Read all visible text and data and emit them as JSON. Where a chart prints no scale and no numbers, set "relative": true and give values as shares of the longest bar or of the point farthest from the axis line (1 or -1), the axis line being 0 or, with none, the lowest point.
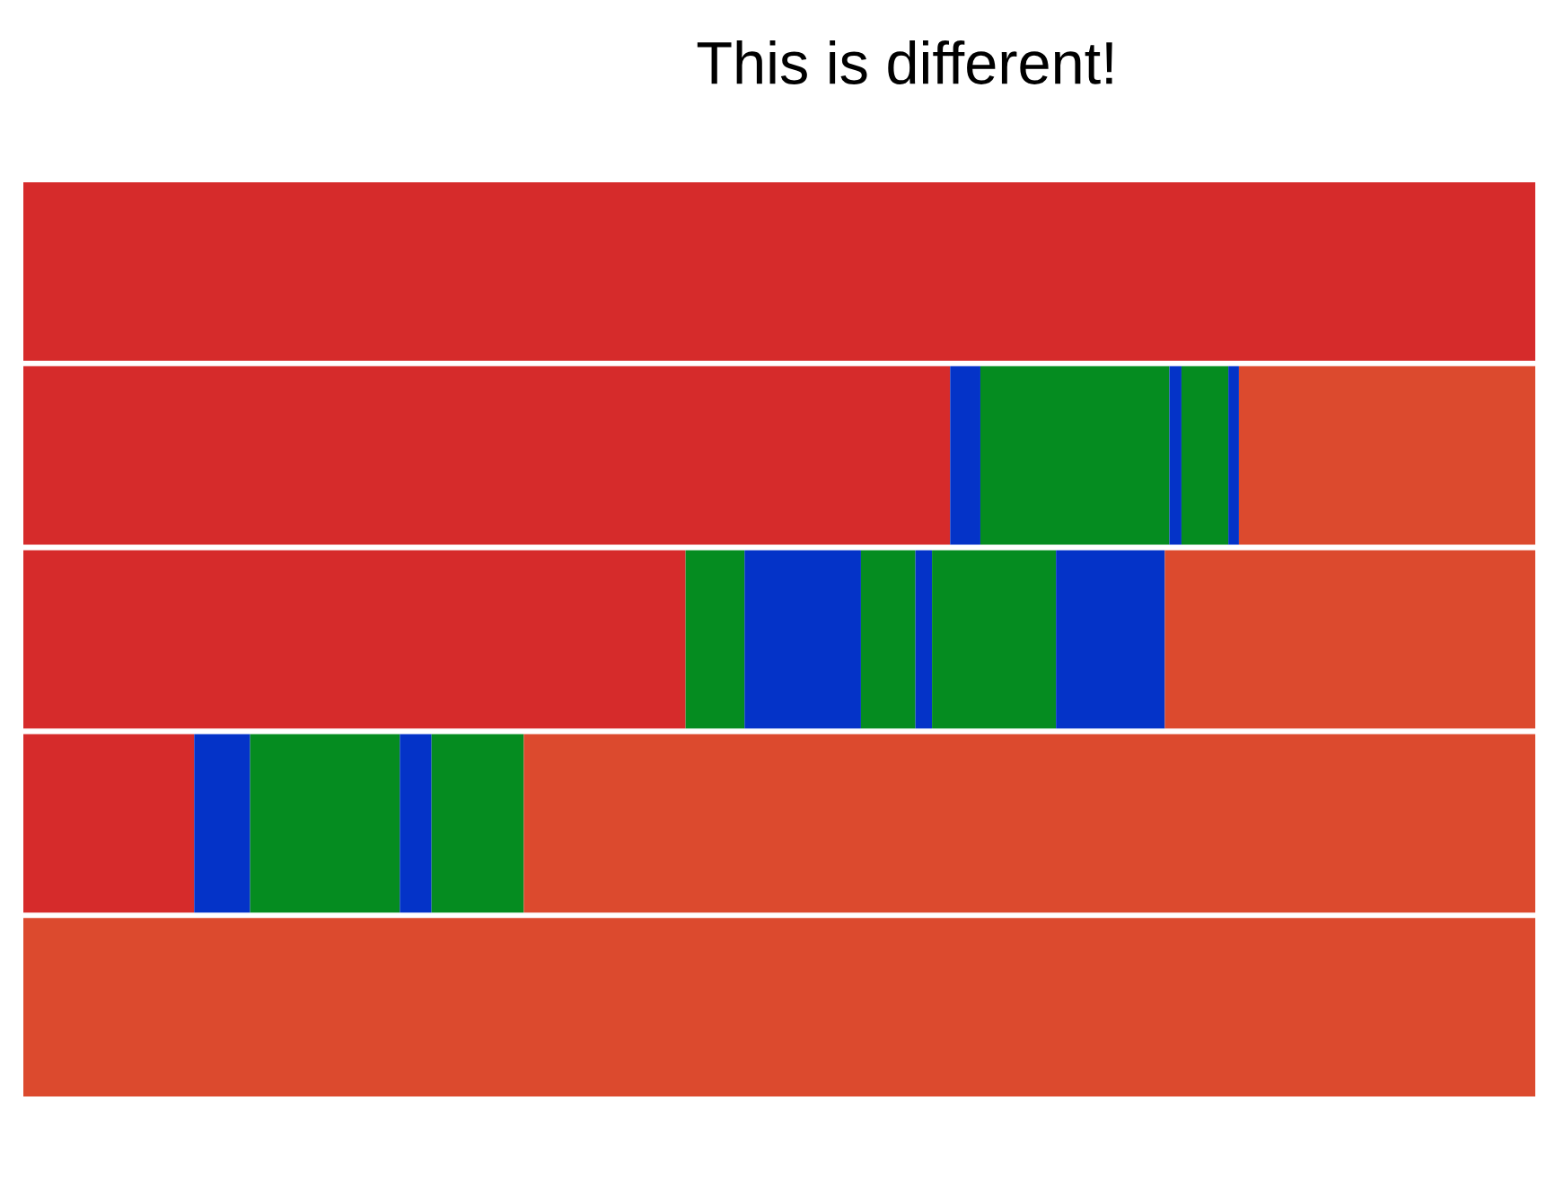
{
  "chart_data": {
    "type": "bar",
    "title": "This is different!",
    "orientation": "horizontal",
    "stacked": true,
    "relative": true,
    "categories": [
      null,
      null,
      null,
      null,
      null
    ],
    "tick_labels": false,
    "grid": false,
    "legend": false,
    "series": [
      {
        "colors": [
          "#d62b2b",
          "#d62b2b",
          "#d62b2b",
          "#d62b2b",
          "#dc4a2e"
        ],
        "values": [
          1,
          0.613,
          0.438,
          0.113,
          1
        ]
      },
      {
        "colors": [
          null,
          "#0433c8",
          "#058c20",
          "#0433c8",
          null
        ],
        "values": [
          null,
          0.02,
          0.039,
          0.037,
          null
        ]
      },
      {
        "colors": [
          null,
          "#058c20",
          "#0433c8",
          "#058c20",
          null
        ],
        "values": [
          null,
          0.125,
          0.077,
          0.099,
          null
        ]
      },
      {
        "colors": [
          null,
          "#0433c8",
          "#058c20",
          "#0433c8",
          null
        ],
        "values": [
          null,
          0.008,
          0.036,
          0.021,
          null
        ]
      },
      {
        "colors": [
          null,
          "#058c20",
          "#0433c8",
          "#058c20",
          null
        ],
        "values": [
          null,
          0.031,
          0.011,
          0.061,
          null
        ]
      },
      {
        "colors": [
          null,
          "#0433c8",
          "#058c20",
          "#dc4a2e",
          null
        ],
        "values": [
          null,
          0.007,
          0.082,
          0.669,
          null
        ]
      },
      {
        "colors": [
          null,
          "#dc4a2e",
          "#0433c8",
          null,
          null
        ],
        "values": [
          null,
          0.196,
          0.072,
          null,
          null
        ]
      },
      {
        "colors": [
          null,
          null,
          "#dc4a2e",
          null,
          null
        ],
        "values": [
          null,
          null,
          0.245,
          null,
          null
        ]
      }
    ]
  }
}
